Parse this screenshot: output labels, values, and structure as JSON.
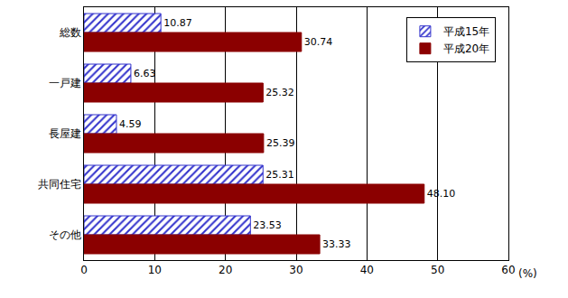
{
  "chart_data": {
    "type": "bar",
    "orientation": "horizontal",
    "categories": [
      "総数",
      "一戸建",
      "長屋建",
      "共同住宅",
      "その他"
    ],
    "series": [
      {
        "name": "平成15年",
        "color": "#3333cc",
        "marker": "hatched",
        "values": [
          10.87,
          6.63,
          4.59,
          25.31,
          23.53
        ],
        "value_labels": [
          "10.87",
          "6.63",
          "4.59",
          "25.31",
          "23.53"
        ]
      },
      {
        "name": "平成20年",
        "color": "#8b0000",
        "values": [
          30.74,
          25.32,
          25.39,
          48.1,
          33.33
        ],
        "value_labels": [
          "30.74",
          "25.32",
          "25.39",
          "48.10",
          "33.33"
        ]
      }
    ],
    "xlabel": "(%)",
    "xlim": [
      0,
      60
    ],
    "xticks": [
      0,
      10,
      20,
      30,
      40,
      50,
      60
    ],
    "grid": true,
    "legend": "top right",
    "data_labels": true
  }
}
